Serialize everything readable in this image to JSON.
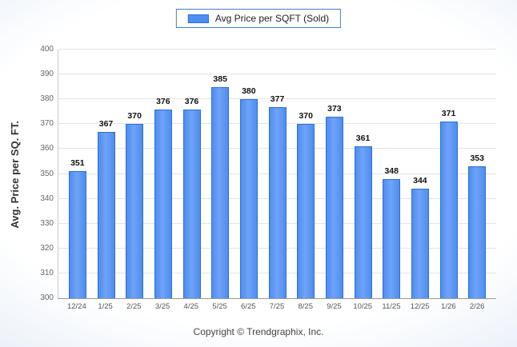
{
  "legend": {
    "label": "Avg Price per SQFT (Sold)"
  },
  "footer": {
    "copyright": "Copyright © Trendgraphix, Inc."
  },
  "chart_data": {
    "type": "bar",
    "title": "",
    "legend": "Avg Price per SQFT (Sold)",
    "legend_position": "top-center",
    "xlabel": "",
    "ylabel": "Avg. Price per SQ. FT.",
    "ylim": [
      300,
      400
    ],
    "ytick_step": 10,
    "grid": true,
    "bar_color": "#4e8df2",
    "bar_border_color": "#2e6fd6",
    "categories": [
      "12/24",
      "1/25",
      "2/25",
      "3/25",
      "4/25",
      "5/25",
      "6/25",
      "7/25",
      "8/25",
      "9/25",
      "10/25",
      "11/25",
      "12/25",
      "1/26",
      "2/26"
    ],
    "values": [
      351,
      367,
      370,
      376,
      376,
      385,
      380,
      377,
      370,
      373,
      361,
      348,
      344,
      371,
      353
    ]
  }
}
